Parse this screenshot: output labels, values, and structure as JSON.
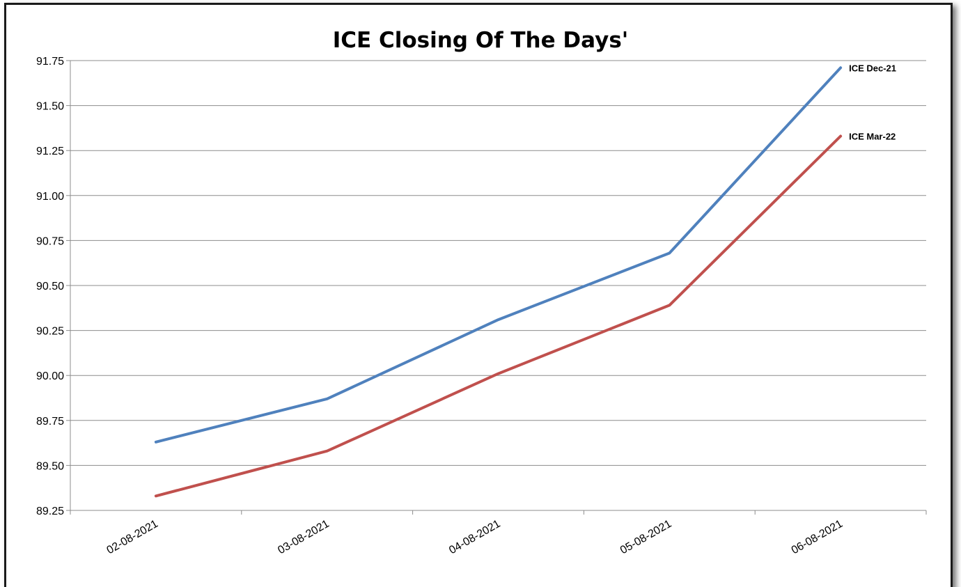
{
  "chart_data": {
    "type": "line",
    "title": "ICE Closing Of The Days'",
    "xlabel": "",
    "ylabel": "",
    "categories": [
      "02-08-2021",
      "03-08-2021",
      "04-08-2021",
      "05-08-2021",
      "06-08-2021"
    ],
    "y_ticks": [
      "89.25",
      "89.50",
      "89.75",
      "90.00",
      "90.25",
      "90.50",
      "90.75",
      "91.00",
      "91.25",
      "91.50",
      "91.75"
    ],
    "ylim": [
      89.25,
      91.75
    ],
    "grid": true,
    "legend": "none",
    "series": [
      {
        "name": "ICE Dec-21",
        "color": "#4f81bd",
        "values": [
          89.63,
          89.87,
          90.31,
          90.68,
          91.71
        ]
      },
      {
        "name": "ICE Mar-22",
        "color": "#c0504d",
        "values": [
          89.33,
          89.58,
          90.01,
          90.39,
          91.33
        ]
      }
    ]
  }
}
